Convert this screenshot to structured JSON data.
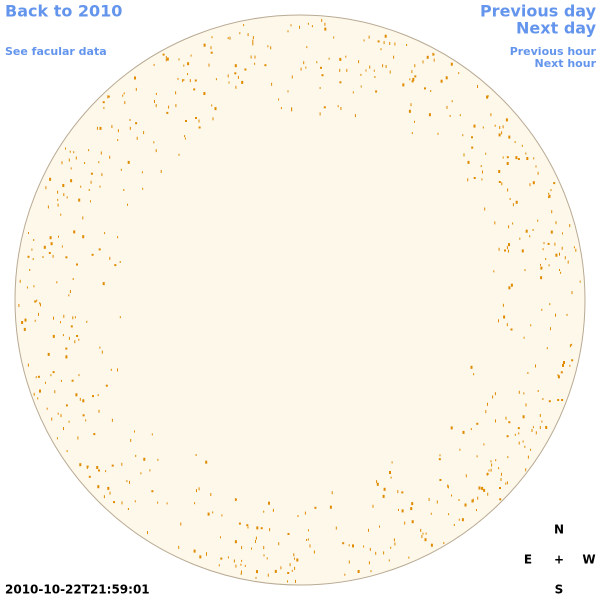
{
  "nav": {
    "back": "Back to 2010",
    "facular_data": "See facular data",
    "previous_day": "Previous day",
    "next_day": "Next day",
    "previous_hour": "Previous hour",
    "next_hour": "Next hour"
  },
  "compass": {
    "north": "N",
    "east": "E",
    "center": "+",
    "west": "W",
    "south": "S"
  },
  "timestamp": "2010-10-22T21:59:01"
}
